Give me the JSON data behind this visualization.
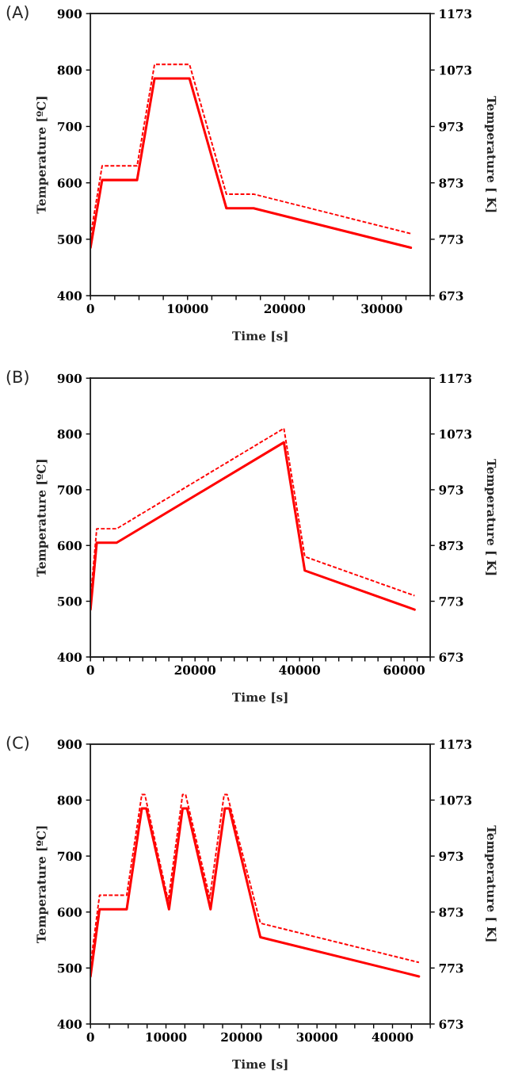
{
  "chart_data": [
    {
      "type": "line",
      "annotations": [
        "(A)"
      ],
      "xlabel": "Time [s]",
      "ylabel": "Temperature [ºC]",
      "y2label": "Temperature [ K]",
      "xlim": [
        0,
        35000
      ],
      "xticks": [
        0,
        {
          "value": 2500,
          "label": null
        },
        {
          "value": 5000,
          "label": null
        },
        {
          "value": 7500,
          "label": null
        },
        10000,
        {
          "value": 12500,
          "label": null
        },
        {
          "value": 15000,
          "label": null
        },
        {
          "value": 17500,
          "label": null
        },
        20000,
        {
          "value": 22500,
          "label": null
        },
        {
          "value": 25000,
          "label": null
        },
        {
          "value": 27500,
          "label": null
        },
        30000,
        {
          "value": 32500,
          "label": null
        },
        {
          "value": 35000,
          "label": null
        }
      ],
      "ylim": [
        400,
        900
      ],
      "yticks": [
        400,
        500,
        600,
        700,
        800,
        900
      ],
      "y2lim": [
        673,
        1173
      ],
      "y2ticks": [
        673,
        773,
        873,
        973,
        1073,
        1173
      ],
      "grid": false,
      "legend": false,
      "series": [
        {
          "color": "#ff0000",
          "line_style": "solid",
          "x": [
            0,
            1200,
            4800,
            6600,
            10200,
            14000,
            16800,
            33000
          ],
          "values": [
            485,
            605,
            605,
            785,
            785,
            555,
            555,
            485
          ]
        },
        {
          "color": "#ff0000",
          "line_style": "dashed",
          "x": [
            0,
            1200,
            4800,
            6600,
            10200,
            14000,
            16800,
            33000
          ],
          "values": [
            505,
            630,
            630,
            810,
            810,
            580,
            580,
            510
          ]
        }
      ]
    },
    {
      "type": "line",
      "annotations": [
        "(B)"
      ],
      "xlabel": "Time [s]",
      "ylabel": "Temperature [ºC]",
      "y2label": "Temperature [ K]",
      "xlim": [
        0,
        65000
      ],
      "xticks": [
        0,
        {
          "value": 2500,
          "label": null
        },
        {
          "value": 5000,
          "label": null
        },
        {
          "value": 7500,
          "label": null
        },
        {
          "value": 10000,
          "label": null
        },
        {
          "value": 12500,
          "label": null
        },
        {
          "value": 15000,
          "label": null
        },
        {
          "value": 17500,
          "label": null
        },
        20000,
        {
          "value": 22500,
          "label": null
        },
        {
          "value": 25000,
          "label": null
        },
        {
          "value": 27500,
          "label": null
        },
        {
          "value": 30000,
          "label": null
        },
        {
          "value": 32500,
          "label": null
        },
        {
          "value": 35000,
          "label": null
        },
        {
          "value": 37500,
          "label": null
        },
        40000,
        {
          "value": 42500,
          "label": null
        },
        {
          "value": 45000,
          "label": null
        },
        {
          "value": 47500,
          "label": null
        },
        {
          "value": 50000,
          "label": null
        },
        {
          "value": 52500,
          "label": null
        },
        {
          "value": 55000,
          "label": null
        },
        {
          "value": 57500,
          "label": null
        },
        60000,
        {
          "value": 62500,
          "label": null
        },
        {
          "value": 65000,
          "label": null
        }
      ],
      "ylim": [
        400,
        900
      ],
      "yticks": [
        400,
        500,
        600,
        700,
        800,
        900
      ],
      "y2lim": [
        673,
        1173
      ],
      "y2ticks": [
        673,
        773,
        873,
        973,
        1073,
        1173
      ],
      "grid": false,
      "legend": false,
      "series": [
        {
          "color": "#ff0000",
          "line_style": "solid",
          "x": [
            0,
            1200,
            5000,
            37000,
            41000,
            62000
          ],
          "values": [
            485,
            605,
            605,
            785,
            555,
            485
          ]
        },
        {
          "color": "#ff0000",
          "line_style": "dashed",
          "x": [
            0,
            1200,
            5000,
            37000,
            41000,
            62000
          ],
          "values": [
            505,
            630,
            630,
            810,
            580,
            510
          ]
        }
      ]
    },
    {
      "type": "line",
      "annotations": [
        "(C)"
      ],
      "xlabel": "Time [s]",
      "ylabel": "Temperature [ºC]",
      "y2label": "Temperature [ K]",
      "xlim": [
        0,
        45000
      ],
      "xticks": [
        0,
        {
          "value": 2500,
          "label": null
        },
        {
          "value": 5000,
          "label": null
        },
        {
          "value": 7500,
          "label": null
        },
        10000,
        {
          "value": 12500,
          "label": null
        },
        {
          "value": 15000,
          "label": null
        },
        {
          "value": 17500,
          "label": null
        },
        20000,
        {
          "value": 22500,
          "label": null
        },
        {
          "value": 25000,
          "label": null
        },
        {
          "value": 27500,
          "label": null
        },
        30000,
        {
          "value": 32500,
          "label": null
        },
        {
          "value": 35000,
          "label": null
        },
        {
          "value": 37500,
          "label": null
        },
        40000,
        {
          "value": 42500,
          "label": null
        },
        {
          "value": 45000,
          "label": null
        }
      ],
      "ylim": [
        400,
        900
      ],
      "yticks": [
        400,
        500,
        600,
        700,
        800,
        900
      ],
      "y2lim": [
        673,
        1173
      ],
      "y2ticks": [
        673,
        773,
        873,
        973,
        1073,
        1173
      ],
      "grid": false,
      "legend": false,
      "series": [
        {
          "color": "#ff0000",
          "line_style": "solid",
          "x": [
            0,
            1200,
            4800,
            6800,
            7400,
            10400,
            12200,
            12800,
            15900,
            17800,
            18400,
            22500,
            43500
          ],
          "values": [
            485,
            605,
            605,
            785,
            785,
            605,
            785,
            785,
            605,
            785,
            785,
            555,
            485
          ]
        },
        {
          "color": "#ff0000",
          "line_style": "dashed",
          "x": [
            0,
            1200,
            4800,
            6800,
            7200,
            10300,
            12200,
            12600,
            15800,
            17700,
            18100,
            22500,
            43500
          ],
          "values": [
            505,
            630,
            630,
            810,
            810,
            620,
            810,
            810,
            625,
            810,
            810,
            580,
            510
          ]
        }
      ]
    }
  ]
}
